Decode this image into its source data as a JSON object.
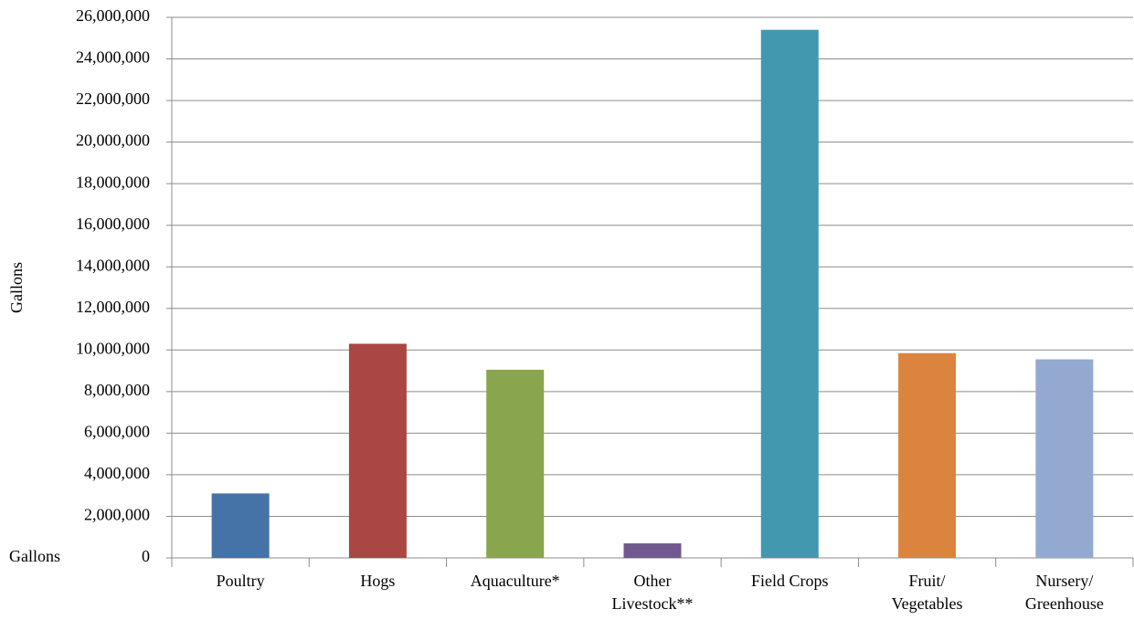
{
  "chart_data": {
    "type": "bar",
    "y_label": "Gallons",
    "categories": [
      "Poultry",
      "Hogs",
      "Aquaculture*",
      "Other\nLivestock**",
      "Field Crops",
      "Fruit/\nVegetables",
      "Nursery/\nGreenhouse"
    ],
    "series": [
      {
        "name": "Gallons",
        "colors": [
          "#4572a7",
          "#aa4643",
          "#89a54e",
          "#71588f",
          "#4198af",
          "#db843d",
          "#93a9cf"
        ],
        "values": [
          3100000,
          10300000,
          9050000,
          700000,
          25400000,
          9850000,
          9550000
        ]
      }
    ],
    "ylim": [
      0,
      26000000
    ],
    "yticks": [
      0,
      {
        "value": 2000000,
        "label": "2,000,000"
      },
      {
        "value": 4000000,
        "label": "4,000,000"
      },
      {
        "value": 6000000,
        "label": "6,000,000"
      },
      {
        "value": 8000000,
        "label": "8,000,000"
      },
      {
        "value": 10000000,
        "label": "10,000,000"
      },
      {
        "value": 12000000,
        "label": "12,000,000"
      },
      {
        "value": 14000000,
        "label": "14,000,000"
      },
      {
        "value": 16000000,
        "label": "16,000,000"
      },
      {
        "value": 18000000,
        "label": "18,000,000"
      },
      {
        "value": 20000000,
        "label": "20,000,000"
      },
      {
        "value": 22000000,
        "label": "22,000,000"
      },
      {
        "value": 24000000,
        "label": "24,000,000"
      },
      {
        "value": 26000000,
        "label": "26,000,000"
      }
    ],
    "grid": true
  }
}
